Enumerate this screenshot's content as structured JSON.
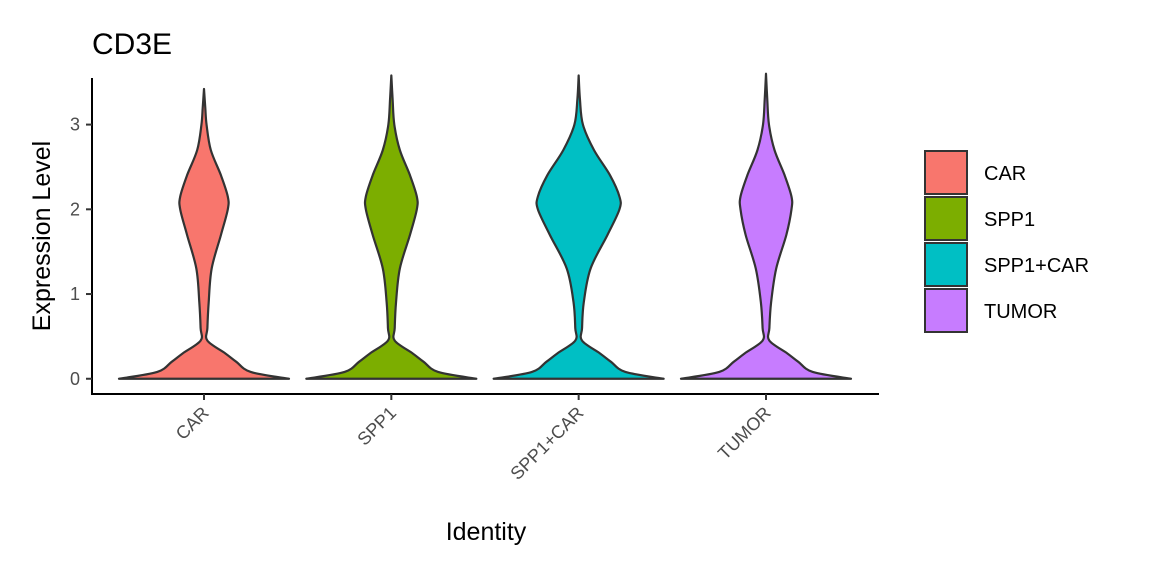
{
  "chart_data": {
    "type": "violin",
    "title": "CD3E",
    "xlabel": "Identity",
    "ylabel": "Expression Level",
    "categories": [
      "CAR",
      "SPP1",
      "SPP1+CAR",
      "TUMOR"
    ],
    "colors": [
      "#F8766D",
      "#7CAE00",
      "#00BFC4",
      "#C77CFF"
    ],
    "ylim": [
      -0.18,
      3.55
    ],
    "yticks": [
      0,
      1,
      2,
      3
    ],
    "grid": false,
    "legend_position": "right",
    "series": [
      {
        "name": "CAR",
        "max": 3.42,
        "density": [
          [
            0,
            1.0
          ],
          [
            0.08,
            0.55
          ],
          [
            0.2,
            0.38
          ],
          [
            0.3,
            0.25
          ],
          [
            0.45,
            0.04
          ],
          [
            0.6,
            0.04
          ],
          [
            0.9,
            0.055
          ],
          [
            1.3,
            0.09
          ],
          [
            1.7,
            0.2
          ],
          [
            2.0,
            0.28
          ],
          [
            2.15,
            0.28
          ],
          [
            2.4,
            0.2
          ],
          [
            2.7,
            0.08
          ],
          [
            3.0,
            0.03
          ],
          [
            3.2,
            0.015
          ],
          [
            3.42,
            0.0
          ]
        ]
      },
      {
        "name": "SPP1",
        "max": 3.58,
        "density": [
          [
            0,
            1.0
          ],
          [
            0.08,
            0.55
          ],
          [
            0.2,
            0.38
          ],
          [
            0.3,
            0.25
          ],
          [
            0.45,
            0.04
          ],
          [
            0.6,
            0.04
          ],
          [
            0.9,
            0.055
          ],
          [
            1.3,
            0.1
          ],
          [
            1.7,
            0.22
          ],
          [
            2.0,
            0.3
          ],
          [
            2.15,
            0.3
          ],
          [
            2.4,
            0.22
          ],
          [
            2.7,
            0.1
          ],
          [
            3.0,
            0.035
          ],
          [
            3.3,
            0.015
          ],
          [
            3.58,
            0.0
          ]
        ]
      },
      {
        "name": "SPP1+CAR",
        "max": 3.58,
        "density": [
          [
            0,
            1.0
          ],
          [
            0.08,
            0.55
          ],
          [
            0.2,
            0.38
          ],
          [
            0.3,
            0.25
          ],
          [
            0.45,
            0.04
          ],
          [
            0.6,
            0.04
          ],
          [
            0.9,
            0.06
          ],
          [
            1.3,
            0.14
          ],
          [
            1.7,
            0.34
          ],
          [
            2.0,
            0.48
          ],
          [
            2.15,
            0.48
          ],
          [
            2.4,
            0.37
          ],
          [
            2.7,
            0.18
          ],
          [
            3.0,
            0.05
          ],
          [
            3.3,
            0.015
          ],
          [
            3.58,
            0.0
          ]
        ]
      },
      {
        "name": "TUMOR",
        "max": 3.6,
        "density": [
          [
            0,
            1.0
          ],
          [
            0.08,
            0.55
          ],
          [
            0.2,
            0.38
          ],
          [
            0.3,
            0.25
          ],
          [
            0.45,
            0.04
          ],
          [
            0.6,
            0.04
          ],
          [
            0.9,
            0.06
          ],
          [
            1.3,
            0.12
          ],
          [
            1.7,
            0.24
          ],
          [
            2.0,
            0.3
          ],
          [
            2.15,
            0.3
          ],
          [
            2.4,
            0.22
          ],
          [
            2.7,
            0.1
          ],
          [
            3.0,
            0.035
          ],
          [
            3.3,
            0.015
          ],
          [
            3.6,
            0.0
          ]
        ]
      }
    ]
  }
}
